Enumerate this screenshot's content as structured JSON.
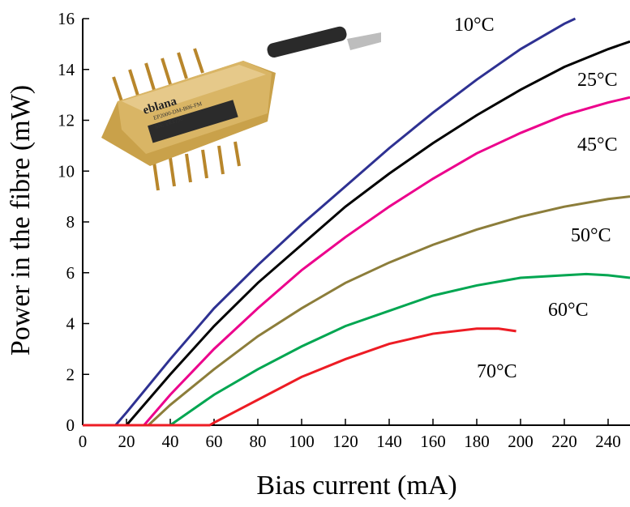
{
  "chart_data": {
    "type": "line",
    "x_label": "Bias current (mA)",
    "y_label": "Power in the fibre (mW)",
    "xlim": [
      0,
      250
    ],
    "ylim": [
      0,
      16
    ],
    "xticks": [
      0,
      20,
      40,
      60,
      80,
      100,
      120,
      140,
      160,
      180,
      200,
      220,
      240
    ],
    "yticks": [
      0,
      2,
      4,
      6,
      8,
      10,
      12,
      14,
      16
    ],
    "inset_labels": [
      "eblana",
      "EP2000-DM-B06-FM",
      "SN: YE1750"
    ],
    "series": [
      {
        "name": "10°C",
        "color": "#2e3192",
        "x": [
          0,
          15,
          20,
          40,
          60,
          80,
          100,
          120,
          140,
          160,
          180,
          200,
          220,
          225
        ],
        "values": [
          0,
          0,
          0.5,
          2.6,
          4.6,
          6.3,
          7.9,
          9.4,
          10.9,
          12.3,
          13.6,
          14.8,
          15.8,
          16
        ]
      },
      {
        "name": "25°C",
        "color": "#000000",
        "x": [
          0,
          20,
          40,
          60,
          80,
          100,
          120,
          140,
          160,
          180,
          200,
          220,
          240,
          250
        ],
        "values": [
          0,
          0,
          2.0,
          3.9,
          5.6,
          7.1,
          8.6,
          9.9,
          11.1,
          12.2,
          13.2,
          14.1,
          14.8,
          15.1
        ]
      },
      {
        "name": "45°C",
        "color": "#ec008c",
        "x": [
          0,
          28,
          40,
          60,
          80,
          100,
          120,
          140,
          160,
          180,
          200,
          220,
          240,
          250
        ],
        "values": [
          0,
          0,
          1.2,
          3.0,
          4.6,
          6.1,
          7.4,
          8.6,
          9.7,
          10.7,
          11.5,
          12.2,
          12.7,
          12.9
        ]
      },
      {
        "name": "50°C",
        "color": "#8c7d3a",
        "x": [
          0,
          30,
          40,
          60,
          80,
          100,
          120,
          140,
          160,
          180,
          200,
          220,
          240,
          250
        ],
        "values": [
          0,
          0,
          0.8,
          2.2,
          3.5,
          4.6,
          5.6,
          6.4,
          7.1,
          7.7,
          8.2,
          8.6,
          8.9,
          9.0
        ]
      },
      {
        "name": "60°C",
        "color": "#00a651",
        "x": [
          0,
          40,
          60,
          80,
          100,
          120,
          140,
          160,
          180,
          200,
          220,
          230,
          240,
          250
        ],
        "values": [
          0,
          0,
          1.2,
          2.2,
          3.1,
          3.9,
          4.5,
          5.1,
          5.5,
          5.8,
          5.9,
          5.95,
          5.9,
          5.8
        ]
      },
      {
        "name": "70°C",
        "color": "#ed1c24",
        "x": [
          0,
          58,
          60,
          80,
          100,
          120,
          140,
          160,
          180,
          190,
          198
        ],
        "values": [
          0,
          0,
          0.1,
          1.0,
          1.9,
          2.6,
          3.2,
          3.6,
          3.8,
          3.8,
          3.7
        ]
      }
    ]
  }
}
